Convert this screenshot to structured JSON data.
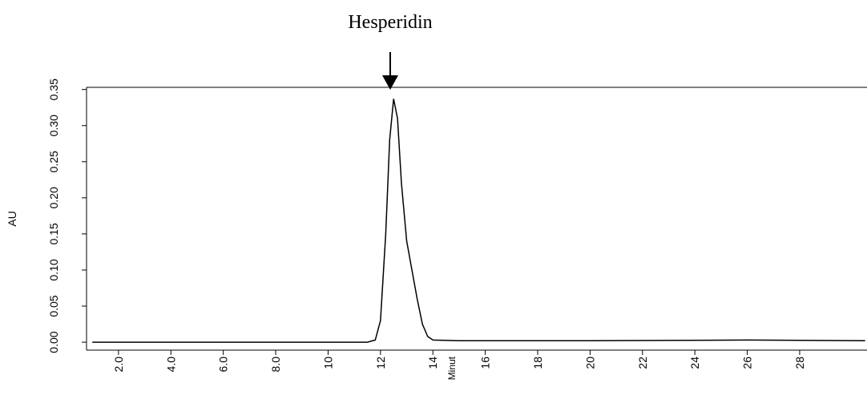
{
  "chart_data": {
    "type": "line",
    "annotation": "Hesperidin",
    "ylabel": "AU",
    "xlabel": "Minut",
    "x": [
      1,
      11.5,
      11.8,
      12.0,
      12.2,
      12.35,
      12.5,
      12.65,
      12.8,
      13.0,
      13.2,
      13.4,
      13.6,
      13.8,
      14.0,
      15,
      20,
      26,
      30.5
    ],
    "series": [
      {
        "name": "AU",
        "color": "#000000",
        "values": [
          0.0,
          0.0,
          0.003,
          0.03,
          0.15,
          0.28,
          0.337,
          0.31,
          0.22,
          0.14,
          0.1,
          0.06,
          0.025,
          0.008,
          0.003,
          0.002,
          0.002,
          0.003,
          0.002
        ]
      }
    ],
    "xlim": [
      0.78,
      30.57
    ],
    "ylim": [
      -0.011,
      0.353
    ],
    "xticks": [
      {
        "value": 2,
        "label": "2.0"
      },
      {
        "value": 4,
        "label": "4.0"
      },
      {
        "value": 6,
        "label": "6.0"
      },
      {
        "value": 8,
        "label": "8.0"
      },
      10,
      12,
      14,
      16,
      18,
      20,
      22,
      24,
      26,
      28
    ],
    "yticks": [
      {
        "value": 0,
        "label": "0.00"
      },
      {
        "value": 0.05,
        "label": "0.05"
      },
      {
        "value": 0.1,
        "label": "0.10"
      },
      {
        "value": 0.15,
        "label": "0.15"
      },
      {
        "value": 0.2,
        "label": "0.20"
      },
      {
        "value": 0.25,
        "label": "0.25"
      },
      {
        "value": 0.3,
        "label": "0.30"
      },
      {
        "value": 0.35,
        "label": "0.35"
      }
    ]
  }
}
